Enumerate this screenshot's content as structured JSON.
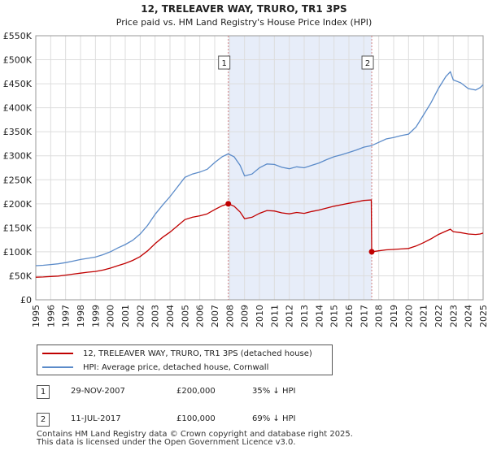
{
  "title": {
    "line1": "12, TRELEAVER WAY, TRURO, TR1 3PS",
    "line2": "Price paid vs. HM Land Registry's House Price Index (HPI)"
  },
  "colors": {
    "hpi": "#5b8bc9",
    "price": "#c00000",
    "shade": "#dde6f7",
    "grid": "#dddddd",
    "marker_line": "#d08080"
  },
  "chart_data": {
    "type": "line",
    "title": "12, TRELEAVER WAY, TRURO, TR1 3PS — Price paid vs. HM Land Registry's House Price Index (HPI)",
    "xlabel": "",
    "ylabel": "",
    "xlim": [
      1995,
      2025
    ],
    "ylim": [
      0,
      550000
    ],
    "x_ticks": [
      "1995",
      "1996",
      "1997",
      "1998",
      "1999",
      "2000",
      "2001",
      "2002",
      "2003",
      "2004",
      "2005",
      "2006",
      "2007",
      "2008",
      "2009",
      "2010",
      "2011",
      "2012",
      "2013",
      "2014",
      "2015",
      "2016",
      "2017",
      "2018",
      "2019",
      "2020",
      "2021",
      "2022",
      "2023",
      "2024",
      "2025"
    ],
    "y_ticks": [
      {
        "value": 0,
        "label": "£0"
      },
      {
        "value": 50000,
        "label": "£50K"
      },
      {
        "value": 100000,
        "label": "£100K"
      },
      {
        "value": 150000,
        "label": "£150K"
      },
      {
        "value": 200000,
        "label": "£200K"
      },
      {
        "value": 250000,
        "label": "£250K"
      },
      {
        "value": 300000,
        "label": "£300K"
      },
      {
        "value": 350000,
        "label": "£350K"
      },
      {
        "value": 400000,
        "label": "£400K"
      },
      {
        "value": 450000,
        "label": "£450K"
      },
      {
        "value": 500000,
        "label": "£500K"
      },
      {
        "value": 550000,
        "label": "£550K"
      }
    ],
    "shaded_range": [
      2007.91,
      2017.53
    ],
    "series": [
      {
        "name": "HPI: Average price, detached house, Cornwall",
        "color": "#5b8bc9",
        "points": [
          [
            1995.0,
            71000
          ],
          [
            1995.5,
            72000
          ],
          [
            1996.0,
            73500
          ],
          [
            1996.5,
            75000
          ],
          [
            1997.0,
            77500
          ],
          [
            1997.5,
            80500
          ],
          [
            1998.0,
            84000
          ],
          [
            1998.5,
            86500
          ],
          [
            1999.0,
            89000
          ],
          [
            1999.5,
            94000
          ],
          [
            2000.0,
            100000
          ],
          [
            2000.5,
            108000
          ],
          [
            2001.0,
            115000
          ],
          [
            2001.5,
            124000
          ],
          [
            2002.0,
            137000
          ],
          [
            2002.5,
            155000
          ],
          [
            2003.0,
            178000
          ],
          [
            2003.5,
            197000
          ],
          [
            2004.0,
            215000
          ],
          [
            2004.5,
            235000
          ],
          [
            2005.0,
            255000
          ],
          [
            2005.5,
            262000
          ],
          [
            2006.0,
            266000
          ],
          [
            2006.5,
            272000
          ],
          [
            2007.0,
            286000
          ],
          [
            2007.5,
            298000
          ],
          [
            2007.9,
            304000
          ],
          [
            2008.3,
            298000
          ],
          [
            2008.7,
            280000
          ],
          [
            2009.0,
            258000
          ],
          [
            2009.5,
            262000
          ],
          [
            2010.0,
            275000
          ],
          [
            2010.5,
            283000
          ],
          [
            2011.0,
            282000
          ],
          [
            2011.5,
            276000
          ],
          [
            2012.0,
            273000
          ],
          [
            2012.5,
            277000
          ],
          [
            2013.0,
            275000
          ],
          [
            2013.5,
            280000
          ],
          [
            2014.0,
            285000
          ],
          [
            2014.5,
            292000
          ],
          [
            2015.0,
            298000
          ],
          [
            2015.5,
            302000
          ],
          [
            2016.0,
            307000
          ],
          [
            2016.5,
            312000
          ],
          [
            2017.0,
            318000
          ],
          [
            2017.5,
            321000
          ],
          [
            2018.0,
            328000
          ],
          [
            2018.5,
            335000
          ],
          [
            2019.0,
            338000
          ],
          [
            2019.5,
            342000
          ],
          [
            2020.0,
            345000
          ],
          [
            2020.5,
            360000
          ],
          [
            2021.0,
            385000
          ],
          [
            2021.5,
            410000
          ],
          [
            2022.0,
            440000
          ],
          [
            2022.5,
            465000
          ],
          [
            2022.8,
            475000
          ],
          [
            2023.0,
            458000
          ],
          [
            2023.5,
            452000
          ],
          [
            2024.0,
            440000
          ],
          [
            2024.5,
            437000
          ],
          [
            2024.8,
            442000
          ],
          [
            2025.0,
            448000
          ]
        ]
      },
      {
        "name": "12, TRELEAVER WAY, TRURO, TR1 3PS (detached house)",
        "color": "#c00000",
        "points": [
          [
            1995.0,
            47000
          ],
          [
            1995.5,
            47500
          ],
          [
            1996.0,
            48500
          ],
          [
            1996.5,
            49500
          ],
          [
            1997.0,
            51500
          ],
          [
            1997.5,
            53500
          ],
          [
            1998.0,
            55500
          ],
          [
            1998.5,
            57500
          ],
          [
            1999.0,
            59000
          ],
          [
            1999.5,
            62000
          ],
          [
            2000.0,
            66000
          ],
          [
            2000.5,
            71000
          ],
          [
            2001.0,
            76000
          ],
          [
            2001.5,
            82000
          ],
          [
            2002.0,
            90000
          ],
          [
            2002.5,
            102000
          ],
          [
            2003.0,
            117000
          ],
          [
            2003.5,
            130000
          ],
          [
            2004.0,
            141000
          ],
          [
            2004.5,
            154000
          ],
          [
            2005.0,
            167000
          ],
          [
            2005.5,
            172000
          ],
          [
            2006.0,
            175000
          ],
          [
            2006.5,
            179000
          ],
          [
            2007.0,
            188000
          ],
          [
            2007.5,
            196000
          ],
          [
            2007.91,
            200000
          ],
          [
            2008.3,
            195000
          ],
          [
            2008.7,
            183000
          ],
          [
            2009.0,
            169000
          ],
          [
            2009.5,
            172000
          ],
          [
            2010.0,
            180000
          ],
          [
            2010.5,
            186000
          ],
          [
            2011.0,
            185000
          ],
          [
            2011.5,
            181000
          ],
          [
            2012.0,
            179000
          ],
          [
            2012.5,
            182000
          ],
          [
            2013.0,
            180000
          ],
          [
            2013.5,
            184000
          ],
          [
            2014.0,
            187000
          ],
          [
            2014.5,
            191000
          ],
          [
            2015.0,
            195000
          ],
          [
            2015.5,
            198000
          ],
          [
            2016.0,
            201000
          ],
          [
            2016.5,
            204000
          ],
          [
            2017.0,
            207000
          ],
          [
            2017.5,
            208000
          ],
          [
            2017.53,
            100000
          ],
          [
            2018.0,
            102000
          ],
          [
            2018.5,
            104000
          ],
          [
            2019.0,
            105000
          ],
          [
            2019.5,
            106000
          ],
          [
            2020.0,
            107000
          ],
          [
            2020.5,
            112000
          ],
          [
            2021.0,
            119000
          ],
          [
            2021.5,
            127000
          ],
          [
            2022.0,
            136000
          ],
          [
            2022.5,
            143000
          ],
          [
            2022.8,
            147000
          ],
          [
            2023.0,
            142000
          ],
          [
            2023.5,
            140000
          ],
          [
            2024.0,
            137000
          ],
          [
            2024.5,
            136000
          ],
          [
            2024.8,
            137000
          ],
          [
            2025.0,
            139000
          ]
        ]
      }
    ],
    "markers": [
      {
        "label": "1",
        "x": 2007.91,
        "y": 200000
      },
      {
        "label": "2",
        "x": 2017.53,
        "y": 100000
      }
    ]
  },
  "legend": {
    "price_label": "12, TRELEAVER WAY, TRURO, TR1 3PS (detached house)",
    "hpi_label": "HPI: Average price, detached house, Cornwall"
  },
  "transactions": [
    {
      "badge": "1",
      "date": "29-NOV-2007",
      "price": "£200,000",
      "hpi": "35% ↓ HPI"
    },
    {
      "badge": "2",
      "date": "11-JUL-2017",
      "price": "£100,000",
      "hpi": "69% ↓ HPI"
    }
  ],
  "footer": {
    "line1": "Contains HM Land Registry data © Crown copyright and database right 2025.",
    "line2": "This data is licensed under the Open Government Licence v3.0."
  }
}
